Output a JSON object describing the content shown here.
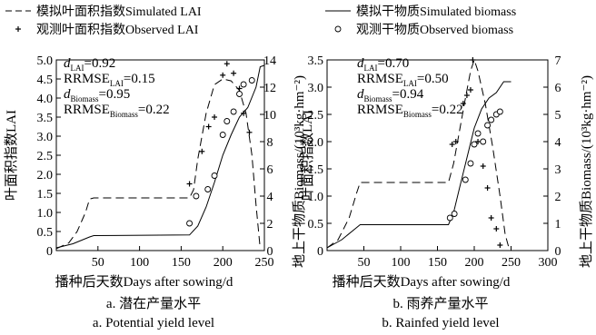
{
  "legend": [
    {
      "style": "dashed",
      "label": "模拟叶面积指数Simulated LAI"
    },
    {
      "style": "plus",
      "label": "观测叶面积指数Observed LAI"
    },
    {
      "style": "solid",
      "label": "模拟干物质Simulated biomass"
    },
    {
      "style": "circle",
      "label": "观测干物质Observed biomass"
    }
  ],
  "chart_data": [
    {
      "type": "line",
      "panel": "a",
      "caption_cn": "a. 潜在产量水平",
      "caption_en": "a. Potential yield level",
      "xlabel": "播种后天数Days after sowing/d",
      "ylabel_left": "叶面积指数LAI",
      "ylabel_right": "地上干物质Biomass/(10³kg·hm⁻²)",
      "xlim": [
        0,
        250
      ],
      "xticks": [
        50,
        100,
        150,
        200,
        250
      ],
      "ylim_left": [
        0,
        5.0
      ],
      "yticks_left": [
        "0",
        "0.5",
        "1.0",
        "1.5",
        "2.0",
        "2.5",
        "3.0",
        "3.5",
        "4.0",
        "4.5",
        "5.0"
      ],
      "ylim_right": [
        0,
        14
      ],
      "yticks_right": [
        "0",
        "2",
        "4",
        "6",
        "8",
        "10",
        "12",
        "14"
      ],
      "stats": [
        {
          "sym": "d",
          "sub": "LAI",
          "eq": "=0.92"
        },
        {
          "sym": "RRMSE",
          "sub": "LAI",
          "eq": "=0.15"
        },
        {
          "sym": "d",
          "sub": "Biomass",
          "eq": "=0.95"
        },
        {
          "sym": "RRMSE",
          "sub": "Biomass",
          "eq": "=0.22"
        }
      ],
      "series": [
        {
          "name": "模拟叶面积指数Simulated LAI",
          "axis": "left",
          "style": "dashed",
          "x": [
            0,
            15,
            25,
            35,
            40,
            45,
            160,
            165,
            170,
            180,
            190,
            200,
            210,
            220,
            228,
            235,
            240,
            245
          ],
          "y": [
            0.05,
            0.2,
            0.5,
            1.0,
            1.35,
            1.38,
            1.38,
            1.6,
            2.4,
            3.6,
            4.35,
            4.5,
            4.45,
            4.2,
            3.6,
            2.5,
            1.2,
            0.05
          ]
        },
        {
          "name": "观测叶面积指数Observed LAI",
          "axis": "left",
          "style": "plus",
          "x": [
            160,
            175,
            183,
            190,
            200,
            205,
            213,
            220,
            225,
            232
          ],
          "y": [
            1.75,
            2.6,
            3.25,
            3.5,
            4.6,
            4.9,
            4.65,
            4.25,
            3.6,
            3.1
          ]
        },
        {
          "name": "模拟干物质Simulated biomass",
          "axis": "right",
          "style": "solid",
          "x": [
            0,
            20,
            40,
            45,
            160,
            170,
            180,
            190,
            200,
            210,
            220,
            230,
            240,
            245,
            250
          ],
          "y": [
            0.2,
            0.5,
            1.0,
            1.1,
            1.15,
            1.8,
            3.2,
            5.0,
            7.0,
            8.5,
            9.8,
            10.5,
            12.0,
            13.5,
            13.6
          ]
        },
        {
          "name": "观测干物质Observed biomass",
          "axis": "right",
          "style": "circle",
          "x": [
            160,
            168,
            182,
            190,
            200,
            205,
            213,
            220,
            225,
            235
          ],
          "y": [
            2.0,
            4.0,
            4.5,
            5.5,
            8.5,
            9.5,
            10.2,
            11.5,
            12.2,
            12.5
          ]
        }
      ]
    },
    {
      "type": "line",
      "panel": "b",
      "caption_cn": "b. 雨养产量水平",
      "caption_en": "b. Rainfed yield level",
      "xlabel": "播种后天数Days after sowing/d",
      "ylabel_left": "叶面积指数LAI",
      "ylabel_right": "地上干物质Biomass/(10³kg·hm⁻²)",
      "xlim": [
        0,
        300
      ],
      "xticks": [
        50,
        100,
        150,
        200,
        250,
        300
      ],
      "ylim_left": [
        0,
        3.5
      ],
      "yticks_left": [
        "0",
        "0.5",
        "1.0",
        "1.5",
        "2.0",
        "2.5",
        "3.0",
        "3.5"
      ],
      "ylim_right": [
        0,
        7
      ],
      "yticks_right": [
        "0",
        "1",
        "2",
        "3",
        "4",
        "5",
        "6",
        "7"
      ],
      "stats": [
        {
          "sym": "d",
          "sub": "LAI",
          "eq": "=0.70"
        },
        {
          "sym": "RRMSE",
          "sub": "LAI",
          "eq": "=0.50"
        },
        {
          "sym": "d",
          "sub": "Biomass",
          "eq": "=0.94"
        },
        {
          "sym": "RRMSE",
          "sub": "Biomass",
          "eq": "=0.22"
        }
      ],
      "series": [
        {
          "name": "模拟叶面积指数Simulated LAI",
          "axis": "left",
          "style": "dashed",
          "x": [
            0,
            15,
            30,
            40,
            45,
            165,
            172,
            180,
            188,
            195,
            200,
            205,
            215,
            225,
            235,
            242,
            248
          ],
          "y": [
            0.05,
            0.2,
            0.6,
            1.05,
            1.25,
            1.25,
            1.6,
            2.2,
            2.8,
            3.3,
            3.5,
            3.3,
            2.7,
            1.9,
            1.0,
            0.3,
            0.0
          ]
        },
        {
          "name": "观测叶面积指数Observed LAI",
          "axis": "left",
          "style": "plus",
          "x": [
            170,
            175,
            185,
            190,
            195,
            198,
            205,
            212,
            218,
            223,
            230,
            235
          ],
          "y": [
            1.95,
            2.0,
            2.7,
            2.85,
            2.95,
            3.5,
            2.0,
            1.55,
            1.15,
            0.6,
            0.4,
            0.1
          ]
        },
        {
          "name": "模拟干物质Simulated biomass",
          "axis": "right",
          "style": "solid",
          "x": [
            0,
            20,
            45,
            165,
            172,
            180,
            190,
            200,
            210,
            220,
            230,
            240,
            250
          ],
          "y": [
            0.1,
            0.4,
            0.95,
            0.95,
            1.4,
            2.3,
            3.4,
            4.5,
            5.2,
            5.6,
            5.8,
            6.2,
            6.2
          ]
        },
        {
          "name": "观测干物质Observed biomass",
          "axis": "right",
          "style": "circle",
          "x": [
            167,
            173,
            188,
            195,
            200,
            205,
            212,
            218,
            223,
            230,
            235
          ],
          "y": [
            1.2,
            1.35,
            2.6,
            3.2,
            3.9,
            4.3,
            4.0,
            4.6,
            4.8,
            5.0,
            5.1
          ]
        }
      ]
    }
  ]
}
